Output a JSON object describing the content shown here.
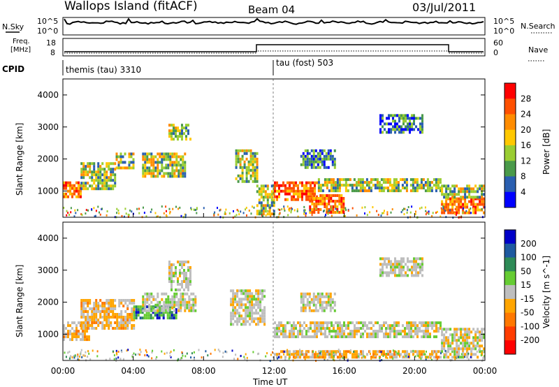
{
  "header": {
    "station": "Wallops Island (fitACF)",
    "beam": "Beam 04",
    "date": "03/Jul/2011"
  },
  "noise_panel": {
    "left_label": "N.Sky",
    "right_label": "N.Search",
    "ytick_top": "10^5",
    "ytick_bottom": "10^0"
  },
  "freq_panel": {
    "left_label_1": "Freq.",
    "left_label_2": "[MHz]",
    "right_label": "Nave",
    "left_ticks": [
      "18",
      "8"
    ],
    "right_ticks": [
      "60",
      "0"
    ]
  },
  "cpid_panel": {
    "label": "CPID",
    "segments": [
      {
        "name": "themis (tau) 3310",
        "start_hour": 0
      },
      {
        "name": "tau (fost) 503",
        "start_hour": 12
      }
    ]
  },
  "power_colorbar": {
    "label": "Power [dB]",
    "ticks": [
      "28",
      "24",
      "20",
      "16",
      "12",
      "8",
      "4"
    ],
    "colors": [
      "#ff0000",
      "#ff5000",
      "#ff8c00",
      "#ffc800",
      "#9acd32",
      "#4a9a4a",
      "#2a5fb0",
      "#0000ff"
    ]
  },
  "velocity_colorbar": {
    "label": "Velocity [m s^-1]",
    "ticks": [
      "200",
      "100",
      "50",
      "15",
      "-15",
      "-50",
      "-100",
      "-200"
    ],
    "colors": [
      "#0000c8",
      "#1e5aa0",
      "#2e8b57",
      "#66cc33",
      "#bebebe",
      "#ffa500",
      "#ff7800",
      "#ff3c00",
      "#ff0000"
    ]
  },
  "colors": {
    "noise_line": "#000000",
    "grey_scatter": "#bebebe"
  },
  "chart_data": [
    {
      "type": "heatmap",
      "name": "power",
      "xlabel": "",
      "ylabel": "Slant Range [km]",
      "xlim": [
        0,
        24
      ],
      "ylim": [
        180,
        4500
      ],
      "yticks": [
        "1000",
        "2000",
        "3000",
        "4000"
      ],
      "xticks": [
        "00:00",
        "04:00",
        "08:00",
        "12:00",
        "16:00",
        "20:00",
        "00:00"
      ],
      "regions": [
        {
          "t0": 0.0,
          "t1": 1.0,
          "r0": 800,
          "r1": 1300,
          "level": "high"
        },
        {
          "t0": 1.0,
          "t1": 3.0,
          "r0": 1100,
          "r1": 1900,
          "level": "medium"
        },
        {
          "t0": 3.0,
          "t1": 4.0,
          "r0": 1700,
          "r1": 2200,
          "level": "medium"
        },
        {
          "t0": 4.5,
          "t1": 7.0,
          "r0": 1500,
          "r1": 2200,
          "level": "medium"
        },
        {
          "t0": 6.0,
          "t1": 7.2,
          "r0": 2600,
          "r1": 3100,
          "level": "medium"
        },
        {
          "t0": 9.8,
          "t1": 11.0,
          "r0": 1300,
          "r1": 2300,
          "level": "medium"
        },
        {
          "t0": 11.0,
          "t1": 12.0,
          "r0": 300,
          "r1": 1200,
          "level": "medium"
        },
        {
          "t0": 12.0,
          "t1": 14.5,
          "r0": 700,
          "r1": 1300,
          "level": "high"
        },
        {
          "t0": 14.0,
          "t1": 16.0,
          "r0": 300,
          "r1": 900,
          "level": "high"
        },
        {
          "t0": 14.5,
          "t1": 21.5,
          "r0": 1000,
          "r1": 1400,
          "level": "medium"
        },
        {
          "t0": 21.5,
          "t1": 24.0,
          "r0": 300,
          "r1": 800,
          "level": "high"
        },
        {
          "t0": 21.5,
          "t1": 24.0,
          "r0": 800,
          "r1": 1200,
          "level": "medium"
        },
        {
          "t0": 13.5,
          "t1": 15.5,
          "r0": 1700,
          "r1": 2300,
          "level": "low"
        },
        {
          "t0": 18.0,
          "t1": 20.5,
          "r0": 2800,
          "r1": 3400,
          "level": "low"
        }
      ]
    },
    {
      "type": "heatmap",
      "name": "velocity",
      "xlabel": "Time UT",
      "ylabel": "Slant Range [km]",
      "xlim": [
        0,
        24
      ],
      "ylim": [
        180,
        4500
      ],
      "yticks": [
        "1000",
        "2000",
        "3000",
        "4000"
      ],
      "xticks": [
        "00:00",
        "04:00",
        "08:00",
        "12:00",
        "16:00",
        "20:00",
        "00:00"
      ],
      "regions": [
        {
          "t0": 0.0,
          "t1": 1.5,
          "r0": 800,
          "r1": 1400,
          "level": "slow"
        },
        {
          "t0": 1.0,
          "t1": 4.0,
          "r0": 1200,
          "r1": 2100,
          "level": "slow"
        },
        {
          "t0": 4.0,
          "t1": 6.5,
          "r0": 1500,
          "r1": 1900,
          "level": "positive"
        },
        {
          "t0": 4.5,
          "t1": 7.5,
          "r0": 1700,
          "r1": 2300,
          "level": "grey"
        },
        {
          "t0": 6.0,
          "t1": 7.2,
          "r0": 2400,
          "r1": 3300,
          "level": "grey"
        },
        {
          "t0": 9.5,
          "t1": 11.5,
          "r0": 1300,
          "r1": 2400,
          "level": "grey"
        },
        {
          "t0": 12.0,
          "t1": 21.5,
          "r0": 900,
          "r1": 1400,
          "level": "grey"
        },
        {
          "t0": 12.0,
          "t1": 21.5,
          "r0": 300,
          "r1": 500,
          "level": "slow"
        },
        {
          "t0": 21.5,
          "t1": 24.0,
          "r0": 300,
          "r1": 1200,
          "level": "grey"
        },
        {
          "t0": 13.5,
          "t1": 15.5,
          "r0": 1700,
          "r1": 2300,
          "level": "grey"
        },
        {
          "t0": 18.0,
          "t1": 20.5,
          "r0": 2800,
          "r1": 3400,
          "level": "grey"
        }
      ]
    }
  ]
}
